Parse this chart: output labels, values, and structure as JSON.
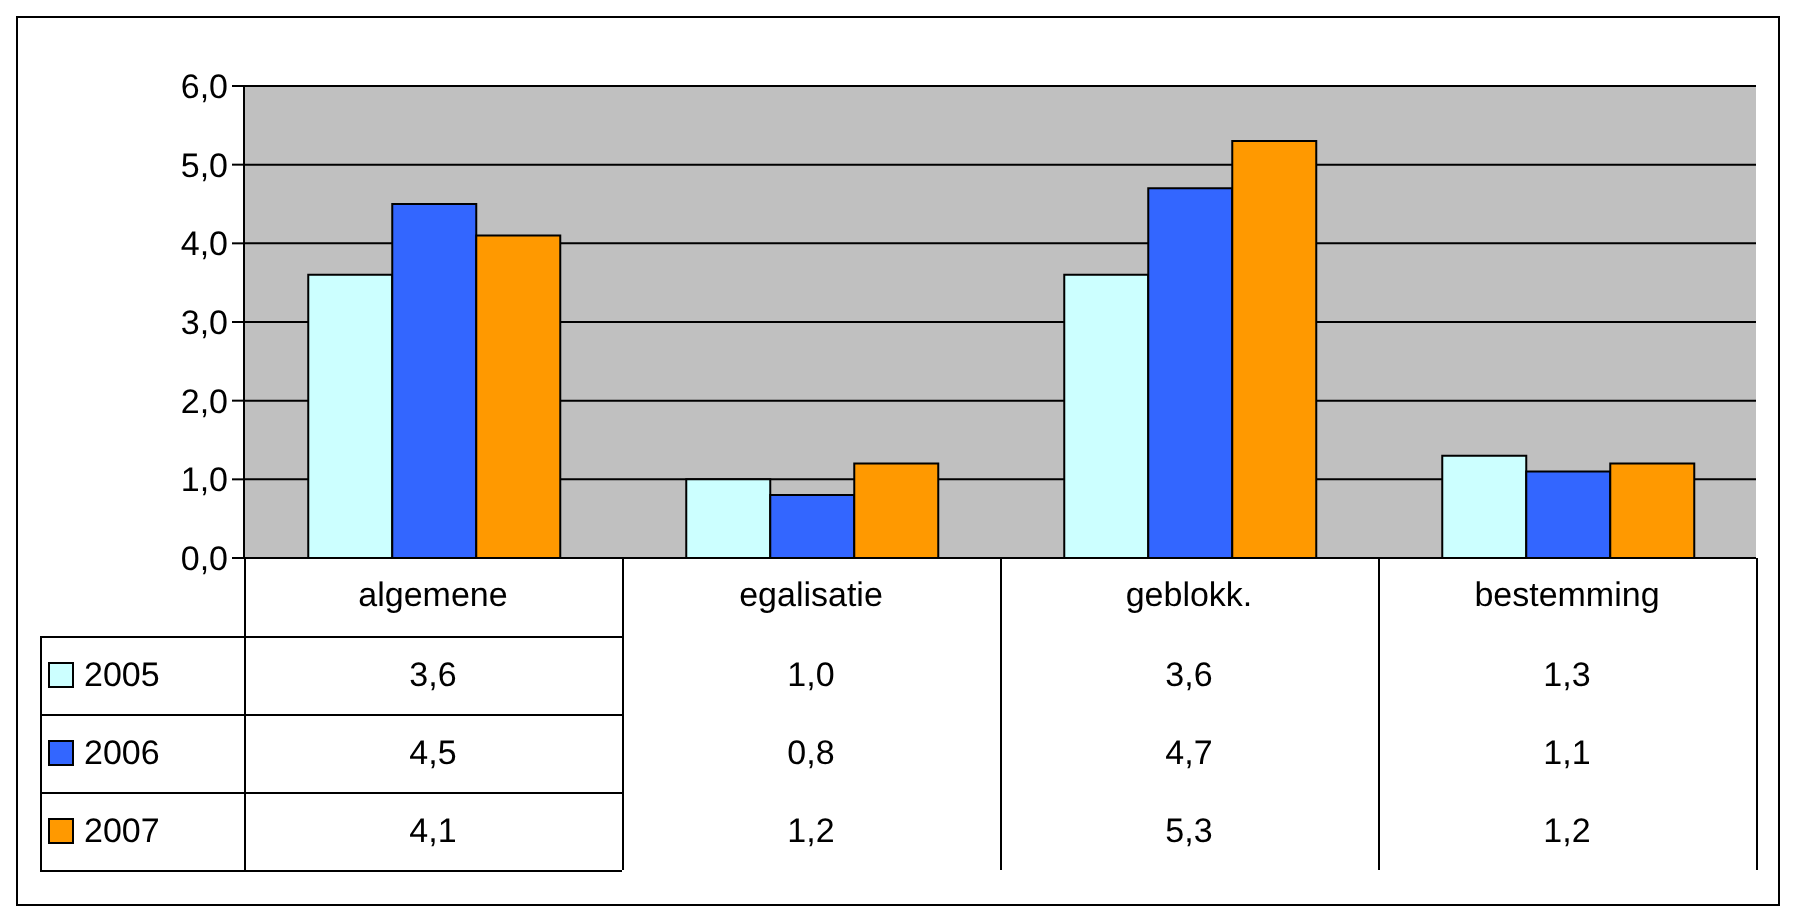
{
  "chart_data": {
    "type": "bar",
    "categories": [
      "algemene",
      "egalisatie",
      "geblokk.",
      "bestemming"
    ],
    "series": [
      {
        "name": "2005",
        "color": "#ccffff",
        "values": [
          3.6,
          1.0,
          3.6,
          1.3
        ],
        "value_labels": [
          "3,6",
          "1,0",
          "3,6",
          "1,3"
        ]
      },
      {
        "name": "2006",
        "color": "#3366ff",
        "values": [
          4.5,
          0.8,
          4.7,
          1.1
        ],
        "value_labels": [
          "4,5",
          "0,8",
          "4,7",
          "1,1"
        ]
      },
      {
        "name": "2007",
        "color": "#ff9900",
        "values": [
          4.1,
          1.2,
          5.3,
          1.2
        ],
        "value_labels": [
          "4,1",
          "1,2",
          "5,3",
          "1,2"
        ]
      }
    ],
    "ylim": [
      0,
      6
    ],
    "yticks": [
      {
        "value": 0,
        "label": "0,0"
      },
      {
        "value": 1,
        "label": "1,0"
      },
      {
        "value": 2,
        "label": "2,0"
      },
      {
        "value": 3,
        "label": "3,0"
      },
      {
        "value": 4,
        "label": "4,0"
      },
      {
        "value": 5,
        "label": "5,0"
      },
      {
        "value": 6,
        "label": "6,0"
      }
    ],
    "grid": "y",
    "legend": "bottom"
  }
}
